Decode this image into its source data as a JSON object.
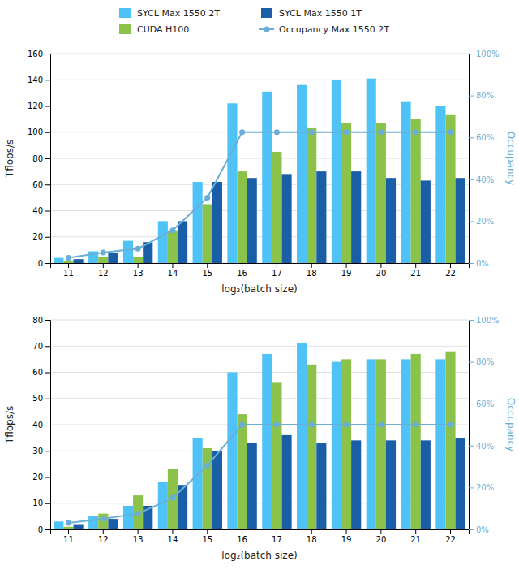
{
  "chart_data": [
    {
      "type": "bar",
      "categories": [
        "11",
        "12",
        "13",
        "14",
        "15",
        "16",
        "17",
        "18",
        "19",
        "20",
        "21",
        "22"
      ],
      "xlabel": "log₂(batch size)",
      "ylabel": "Tflops/s",
      "y2label": "Occupancy",
      "ylim": [
        0,
        160
      ],
      "yticks": [
        0,
        20,
        40,
        60,
        80,
        100,
        120,
        140,
        160
      ],
      "y2lim": [
        0,
        100
      ],
      "y2ticks": [
        {
          "value": 0,
          "label": "0%"
        },
        {
          "value": 20,
          "label": "20%"
        },
        {
          "value": 40,
          "label": "40%"
        },
        {
          "value": 60,
          "label": "60%"
        },
        {
          "value": 80,
          "label": "80%"
        },
        {
          "value": 100,
          "label": "100%"
        }
      ],
      "grid": true,
      "legend": "top",
      "series": [
        {
          "name": "SYCL Max 1550 2T",
          "color": "#4FC3F7",
          "values": [
            4,
            9,
            17,
            32,
            62,
            122,
            131,
            136,
            140,
            141,
            123,
            120
          ]
        },
        {
          "name": "CUDA H100",
          "color": "#8BC34A",
          "values": [
            2,
            5,
            5,
            25,
            45,
            70,
            85,
            103,
            107,
            107,
            110,
            113
          ]
        },
        {
          "name": "SYCL Max 1550 1T",
          "color": "#1A5EA8",
          "values": [
            3,
            8,
            16,
            32,
            62,
            65,
            68,
            70,
            70,
            65,
            63,
            65
          ]
        },
        {
          "name": "Occupancy Max 1550 2T",
          "color": "#6AAED6",
          "type": "line",
          "axis": "y2",
          "marker": "circle",
          "values": [
            2.5,
            5,
            6.9,
            15.6,
            31.25,
            62.5,
            62.5,
            62.5,
            62.5,
            62.5,
            62.5,
            62.5
          ]
        }
      ]
    },
    {
      "type": "bar",
      "categories": [
        "11",
        "12",
        "13",
        "14",
        "15",
        "16",
        "17",
        "18",
        "19",
        "20",
        "21",
        "22"
      ],
      "xlabel": "log₂(batch size)",
      "ylabel": "Tflops/s",
      "y2label": "Occupancy",
      "ylim": [
        0,
        80
      ],
      "yticks": [
        0,
        10,
        20,
        30,
        40,
        50,
        60,
        70,
        80
      ],
      "y2lim": [
        0,
        100
      ],
      "y2ticks": [
        {
          "value": 0,
          "label": "0%"
        },
        {
          "value": 20,
          "label": "20%"
        },
        {
          "value": 40,
          "label": "40%"
        },
        {
          "value": 60,
          "label": "60%"
        },
        {
          "value": 80,
          "label": "80%"
        },
        {
          "value": 100,
          "label": "100%"
        }
      ],
      "grid": true,
      "series": [
        {
          "color": "#4FC3F7",
          "values": [
            3,
            5,
            9,
            18,
            35,
            60,
            67,
            71,
            64,
            65,
            65,
            65
          ]
        },
        {
          "color": "#8BC34A",
          "values": [
            1,
            6,
            13,
            23,
            31,
            44,
            56,
            63,
            65,
            65,
            67,
            68
          ]
        },
        {
          "color": "#1A5EA8",
          "values": [
            2,
            4,
            9,
            17,
            30,
            33,
            36,
            33,
            34,
            34,
            34,
            35
          ]
        },
        {
          "color": "#6AAED6",
          "type": "line",
          "axis": "y2",
          "marker": "circle",
          "values": [
            3.1,
            5,
            7.5,
            15,
            30.6,
            50,
            50,
            50,
            50,
            50,
            50,
            50
          ]
        }
      ]
    }
  ]
}
